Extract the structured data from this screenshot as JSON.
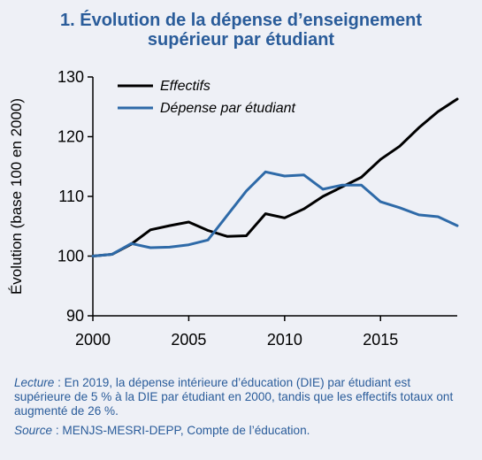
{
  "title": {
    "line1": "1. Évolution de la dépense d’enseignement",
    "line2": "supérieur par étudiant"
  },
  "colors": {
    "background": "#eef0f6",
    "title": "#2a5c9a",
    "effectifs": "#000000",
    "depense": "#2e6aa8",
    "axis": "#000000",
    "notes": "#2a5c9a"
  },
  "chart_data": {
    "type": "line",
    "ylabel": "Évolution (base 100 en 2000)",
    "xlabel": "",
    "xlim": [
      2000,
      2019
    ],
    "ylim": [
      90,
      130
    ],
    "grid": false,
    "legend_position": "top-left",
    "x_ticks": [
      "2000",
      "2005",
      "2010",
      "2015"
    ],
    "y_ticks": [
      "90",
      "100",
      "110",
      "120",
      "130"
    ],
    "x": [
      2000,
      2001,
      2002,
      2003,
      2004,
      2005,
      2006,
      2007,
      2008,
      2009,
      2010,
      2011,
      2012,
      2013,
      2014,
      2015,
      2016,
      2017,
      2018,
      2019
    ],
    "series": [
      {
        "name": "Effectifs",
        "values": [
          100,
          100.3,
          102.0,
          104.4,
          105.1,
          105.7,
          104.3,
          103.3,
          103.4,
          107.1,
          106.4,
          107.9,
          110.0,
          111.6,
          113.2,
          116.2,
          118.4,
          121.5,
          124.2,
          126.3
        ]
      },
      {
        "name": "Dépense par étudiant",
        "values": [
          100,
          100.3,
          102.1,
          101.4,
          101.5,
          101.9,
          102.7,
          106.8,
          110.9,
          114.1,
          113.4,
          113.6,
          111.2,
          111.9,
          111.9,
          109.1,
          108.1,
          106.9,
          106.6,
          105.1
        ]
      }
    ]
  },
  "notes": {
    "lecture_label": "Lecture",
    "lecture_text": " : En 2019, la dépense intérieure d’éducation (DIE) par étudiant est supérieure de 5 % à la DIE par étudiant en 2000, tandis que les effectifs totaux ont augmenté de 26 %.",
    "source_label": "Source",
    "source_text": " : MENJS-MESRI-DEPP, Compte de l’éducation."
  }
}
